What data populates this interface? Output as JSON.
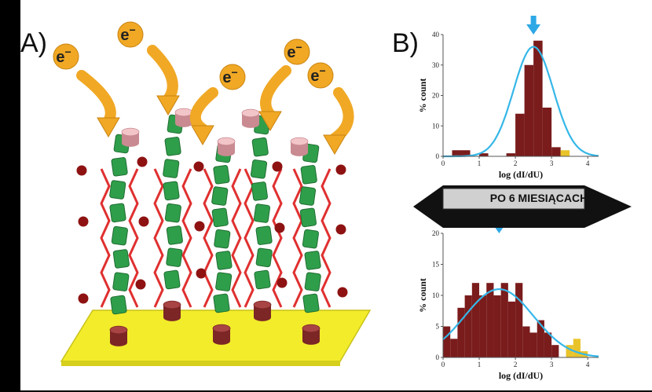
{
  "panel_a": {
    "label": "A)",
    "electron_label": "e"
  },
  "panel_b": {
    "label": "B)"
  },
  "banner": {
    "text": "PO 6 MIESIĄCACH"
  },
  "colors": {
    "bar": "#7a1c1c",
    "bar_highlight": "#e9c32a",
    "gauss": "#35b7e8",
    "arrow": "#2ea8e6",
    "electrode": "#f2ec2a",
    "peptide": "#2f9e4a",
    "alkyl": "#e03030",
    "electron": "#f0a825",
    "anchor": "#7c2626",
    "headgroup": "#f2c5c9",
    "ion": "#8e1212"
  },
  "chart_data": [
    {
      "type": "bar",
      "title": "",
      "xlabel": "log (dI/dU)",
      "ylabel": "% count",
      "xlim": [
        0,
        4.3
      ],
      "ylim": [
        0,
        40
      ],
      "xticks": [
        0,
        1,
        2,
        3,
        4
      ],
      "yticks": [
        0,
        10,
        20,
        30,
        40
      ],
      "bin_width": 0.25,
      "bins": [
        {
          "x": 0.25,
          "value": 2,
          "highlight": false
        },
        {
          "x": 0.5,
          "value": 2,
          "highlight": false
        },
        {
          "x": 1.0,
          "value": 1,
          "highlight": false
        },
        {
          "x": 1.75,
          "value": 1,
          "highlight": false
        },
        {
          "x": 2.0,
          "value": 14,
          "highlight": false
        },
        {
          "x": 2.25,
          "value": 30,
          "highlight": false
        },
        {
          "x": 2.5,
          "value": 38,
          "highlight": false
        },
        {
          "x": 2.75,
          "value": 16,
          "highlight": false
        },
        {
          "x": 3.0,
          "value": 3,
          "highlight": false
        },
        {
          "x": 3.25,
          "value": 2,
          "highlight": true
        }
      ],
      "fit": {
        "type": "gaussian",
        "mean": 2.5,
        "sigma": 0.55,
        "peak": 36
      },
      "marker": {
        "x": 2.5
      }
    },
    {
      "type": "bar",
      "title": "",
      "xlabel": "log (dI/dU)",
      "ylabel": "% count",
      "xlim": [
        0,
        4.3
      ],
      "ylim": [
        0,
        20
      ],
      "xticks": [
        0,
        1,
        2,
        3,
        4
      ],
      "yticks": [
        0,
        5,
        10,
        15,
        20
      ],
      "bin_width": 0.2,
      "bins": [
        {
          "x": 0.0,
          "value": 5,
          "highlight": false
        },
        {
          "x": 0.2,
          "value": 3,
          "highlight": false
        },
        {
          "x": 0.4,
          "value": 8,
          "highlight": false
        },
        {
          "x": 0.6,
          "value": 10,
          "highlight": false
        },
        {
          "x": 0.8,
          "value": 12,
          "highlight": false
        },
        {
          "x": 1.0,
          "value": 10,
          "highlight": false
        },
        {
          "x": 1.2,
          "value": 12,
          "highlight": false
        },
        {
          "x": 1.4,
          "value": 10,
          "highlight": false
        },
        {
          "x": 1.6,
          "value": 12,
          "highlight": false
        },
        {
          "x": 1.8,
          "value": 9,
          "highlight": false
        },
        {
          "x": 2.0,
          "value": 12,
          "highlight": false
        },
        {
          "x": 2.2,
          "value": 5,
          "highlight": false
        },
        {
          "x": 2.4,
          "value": 4,
          "highlight": false
        },
        {
          "x": 2.6,
          "value": 6,
          "highlight": false
        },
        {
          "x": 2.8,
          "value": 4,
          "highlight": false
        },
        {
          "x": 3.0,
          "value": 2,
          "highlight": false
        },
        {
          "x": 3.4,
          "value": 2,
          "highlight": true
        },
        {
          "x": 3.6,
          "value": 3,
          "highlight": true
        },
        {
          "x": 3.8,
          "value": 1,
          "highlight": true
        }
      ],
      "fit": {
        "type": "gaussian",
        "mean": 1.55,
        "sigma": 0.95,
        "peak": 11
      },
      "marker": {
        "x": 1.55
      }
    }
  ]
}
